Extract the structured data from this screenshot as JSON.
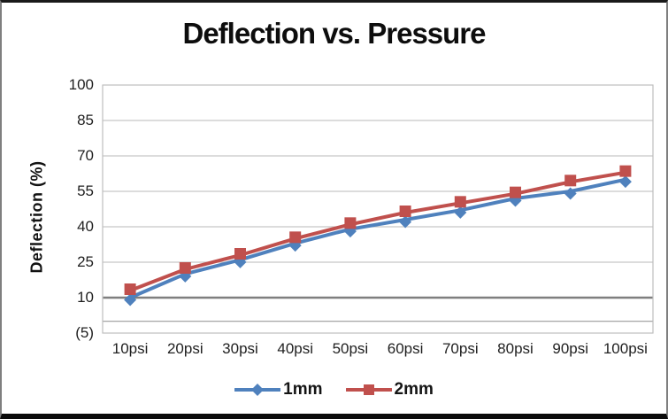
{
  "chart_data": {
    "type": "line",
    "title": "Deflection vs. Pressure",
    "ylabel": "Deflection (%)",
    "xlabel": "",
    "categories": [
      "10psi",
      "20psi",
      "30psi",
      "40psi",
      "50psi",
      "60psi",
      "70psi",
      "80psi",
      "90psi",
      "100psi"
    ],
    "series": [
      {
        "name": "1mm",
        "color": "#4F81BD",
        "marker": "diamond",
        "values": [
          10,
          20,
          26,
          33,
          39,
          43,
          47,
          52,
          55,
          60
        ]
      },
      {
        "name": "2mm",
        "color": "#C0504D",
        "marker": "square",
        "values": [
          13,
          22,
          28,
          35,
          41,
          46,
          50,
          54,
          59,
          63
        ]
      }
    ],
    "y_ticks": [
      {
        "label": "100",
        "value": 100
      },
      {
        "label": "85",
        "value": 85
      },
      {
        "label": "70",
        "value": 70
      },
      {
        "label": "55",
        "value": 55
      },
      {
        "label": "40",
        "value": 40
      },
      {
        "label": "25",
        "value": 25
      },
      {
        "label": "10",
        "value": 10
      },
      {
        "label": "(5)",
        "value": -5
      }
    ],
    "ylim": [
      -5,
      100
    ],
    "grid": true,
    "emphasized_gridline_value": 10,
    "category_axis_value": 0,
    "legend_position": "bottom",
    "colors": {
      "gridline": "#C6C6C6",
      "emphasized_gridline": "#7F7F7F",
      "plot_border": "#BFBFBF",
      "category_axis": "#999999"
    }
  }
}
